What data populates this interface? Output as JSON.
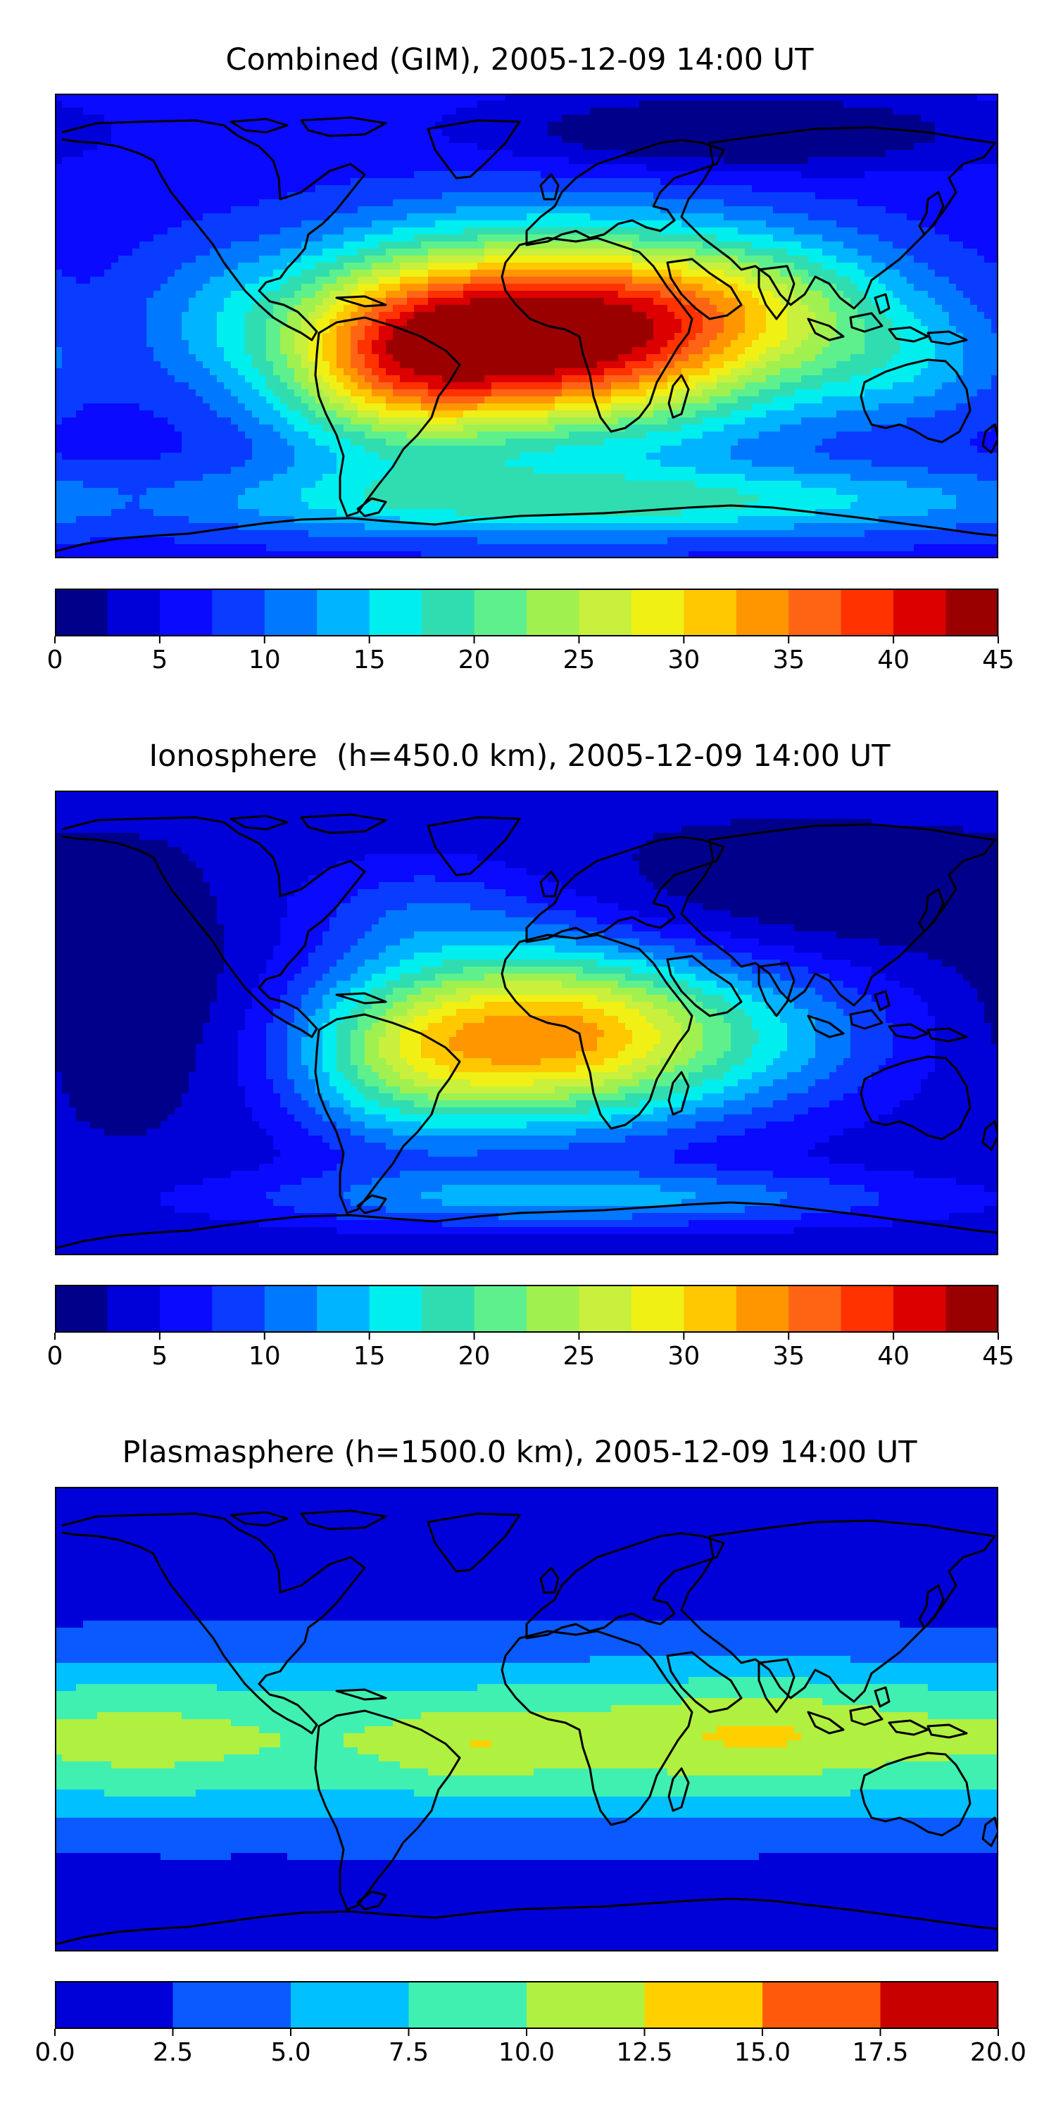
{
  "figure": {
    "panels": [
      {
        "title": "Combined (GIM), 2005-12-09 14:00 UT",
        "type": "filled-contour map",
        "colorbar": {
          "levels": [
            0,
            2.5,
            5,
            7.5,
            10,
            12.5,
            15,
            17.5,
            20,
            22.5,
            25,
            27.5,
            30,
            32.5,
            35,
            37.5,
            40,
            42.5,
            45
          ],
          "tick_labels": [
            "0",
            "5",
            "10",
            "15",
            "20",
            "25",
            "30",
            "35",
            "40",
            "45"
          ],
          "colors": [
            "#00008b",
            "#0000d8",
            "#0a0aff",
            "#0a3cff",
            "#0078ff",
            "#00b4ff",
            "#00eeee",
            "#30ddb0",
            "#5ef08c",
            "#a0f050",
            "#c8f03c",
            "#f0f014",
            "#ffc800",
            "#ff9600",
            "#ff6414",
            "#ff3200",
            "#dc0000",
            "#9b0000"
          ]
        },
        "field": {
          "background_level": 6,
          "blobs": [
            {
              "lon": 12,
              "lat": -3,
              "sx": 60,
              "sy": 26,
              "amp": 40
            },
            {
              "lon": -52,
              "lat": -15,
              "sx": 32,
              "sy": 25,
              "amp": 15
            },
            {
              "lon": 95,
              "lat": 10,
              "sx": 40,
              "sy": 18,
              "amp": 8
            },
            {
              "lon": 145,
              "lat": -15,
              "sx": 30,
              "sy": 16,
              "amp": 6
            },
            {
              "lon": -120,
              "lat": 5,
              "sx": 25,
              "sy": 20,
              "amp": 4
            },
            {
              "lon": 30,
              "lat": -68,
              "sx": 120,
              "sy": 10,
              "amp": 12
            },
            {
              "lon": 80,
              "lat": 75,
              "sx": 60,
              "sy": 10,
              "amp": -8
            }
          ]
        }
      },
      {
        "title": "Ionosphere  (h=450.0 km), 2005-12-09 14:00 UT",
        "type": "filled-contour map",
        "colorbar": {
          "levels": [
            0,
            2.5,
            5,
            7.5,
            10,
            12.5,
            15,
            17.5,
            20,
            22.5,
            25,
            27.5,
            30,
            32.5,
            35,
            37.5,
            40,
            42.5,
            45
          ],
          "tick_labels": [
            "0",
            "5",
            "10",
            "15",
            "20",
            "25",
            "30",
            "35",
            "40",
            "45"
          ],
          "colors": [
            "#00008b",
            "#0000d8",
            "#0a0aff",
            "#0a3cff",
            "#0078ff",
            "#00b4ff",
            "#00eeee",
            "#30ddb0",
            "#5ef08c",
            "#a0f050",
            "#c8f03c",
            "#f0f014",
            "#ffc800",
            "#ff9600",
            "#ff6414",
            "#ff3200",
            "#dc0000",
            "#9b0000"
          ]
        },
        "field": {
          "background_level": 3,
          "blobs": [
            {
              "lon": 10,
              "lat": -5,
              "sx": 50,
              "sy": 24,
              "amp": 30
            },
            {
              "lon": -50,
              "lat": -15,
              "sx": 30,
              "sy": 24,
              "amp": 10
            },
            {
              "lon": 100,
              "lat": -5,
              "sx": 40,
              "sy": 22,
              "amp": 6
            },
            {
              "lon": 20,
              "lat": -68,
              "sx": 90,
              "sy": 8,
              "amp": 10
            },
            {
              "lon": -40,
              "lat": 45,
              "sx": 35,
              "sy": 15,
              "amp": 5
            },
            {
              "lon": 100,
              "lat": 45,
              "sx": 60,
              "sy": 18,
              "amp": -3
            },
            {
              "lon": -150,
              "lat": 10,
              "sx": 30,
              "sy": 30,
              "amp": -3
            }
          ]
        }
      },
      {
        "title": "Plasmasphere (h=1500.0 km), 2005-12-09 14:00 UT",
        "type": "filled-contour map",
        "colorbar": {
          "levels": [
            0,
            2.5,
            5,
            7.5,
            10,
            12.5,
            15,
            17.5,
            20
          ],
          "tick_labels": [
            "0.0",
            "2.5",
            "5.0",
            "7.5",
            "10.0",
            "12.5",
            "15.0",
            "17.5",
            "20.0"
          ],
          "colors": [
            "#0000d8",
            "#0a5aff",
            "#00c0ff",
            "#40f0b0",
            "#b0f040",
            "#ffd000",
            "#ff5a0a",
            "#c80000"
          ]
        },
        "field": {
          "background_level": 1,
          "blobs": [
            {
              "lon": 0,
              "lat": -8,
              "sx": 400,
              "sy": 24,
              "amp": 9
            },
            {
              "lon": 90,
              "lat": -5,
              "sx": 45,
              "sy": 14,
              "amp": 3
            },
            {
              "lon": -20,
              "lat": -12,
              "sx": 20,
              "sy": 10,
              "amp": 2.5
            },
            {
              "lon": -150,
              "lat": -8,
              "sx": 30,
              "sy": 18,
              "amp": 1.5
            }
          ]
        }
      }
    ]
  }
}
